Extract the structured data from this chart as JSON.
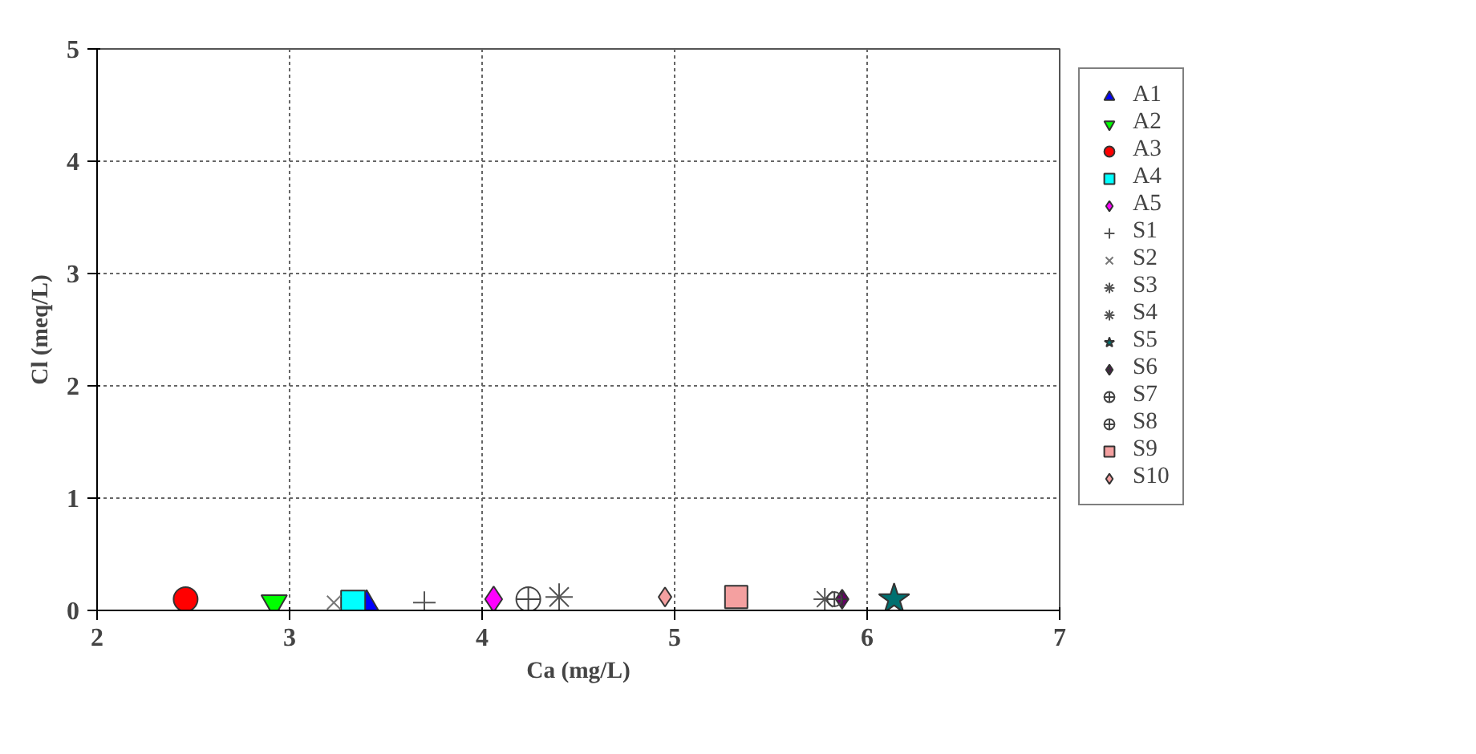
{
  "chart_data": {
    "type": "scatter",
    "xlabel": "Ca (mg/L)",
    "ylabel": "Cl (meq/L)",
    "xlim": [
      2,
      7
    ],
    "ylim": [
      0,
      5
    ],
    "xticks": [
      2,
      3,
      4,
      5,
      6,
      7
    ],
    "yticks": [
      0,
      1,
      2,
      3,
      4,
      5
    ],
    "grid": true,
    "legend": "right",
    "series": [
      {
        "name": "A1",
        "color": "#0000ff",
        "marker": "triangle",
        "x": [
          3.4
        ],
        "values": [
          0.05
        ]
      },
      {
        "name": "A2",
        "color": "#00ff00",
        "marker": "triangle",
        "x": [
          2.92
        ],
        "values": [
          0.07
        ]
      },
      {
        "name": "A3",
        "color": "#ff0000",
        "marker": "circle",
        "x": [
          2.46
        ],
        "values": [
          0.1
        ]
      },
      {
        "name": "A4",
        "color": "#00ffff",
        "marker": "square",
        "x": [
          3.33
        ],
        "values": [
          0.07
        ]
      },
      {
        "name": "A5",
        "color": "#ff00ff",
        "marker": "diamond",
        "x": [
          4.06
        ],
        "values": [
          0.1
        ]
      },
      {
        "name": "S1",
        "color": "#555555",
        "marker": "cross",
        "x": [
          3.7
        ],
        "values": [
          0.07
        ]
      },
      {
        "name": "S2",
        "color": "#777777",
        "marker": "cross",
        "x": [
          3.23
        ],
        "values": [
          0.07
        ]
      },
      {
        "name": "S3",
        "color": "#555555",
        "marker": "cross",
        "x": [
          5.78
        ],
        "values": [
          0.1
        ]
      },
      {
        "name": "S4",
        "color": "#555555",
        "marker": "cross",
        "x": [
          4.4
        ],
        "values": [
          0.12
        ]
      },
      {
        "name": "S5",
        "color": "#007070",
        "marker": "star",
        "x": [
          6.14
        ],
        "values": [
          0.1
        ]
      },
      {
        "name": "S6",
        "color": "#660066",
        "marker": "cross",
        "x": [
          5.87
        ],
        "values": [
          0.1
        ]
      },
      {
        "name": "S7",
        "color": "#444444",
        "marker": "circle",
        "x": [
          4.24
        ],
        "values": [
          0.1
        ]
      },
      {
        "name": "S8",
        "color": "#444444",
        "marker": "circle",
        "x": [
          5.83
        ],
        "values": [
          0.1
        ]
      },
      {
        "name": "S9",
        "color": "#f4a0a0",
        "marker": "square",
        "x": [
          5.32
        ],
        "values": [
          0.12
        ]
      },
      {
        "name": "S10",
        "color": "#f4a0a0",
        "marker": "diamond",
        "x": [
          4.95
        ],
        "values": [
          0.12
        ]
      }
    ]
  }
}
